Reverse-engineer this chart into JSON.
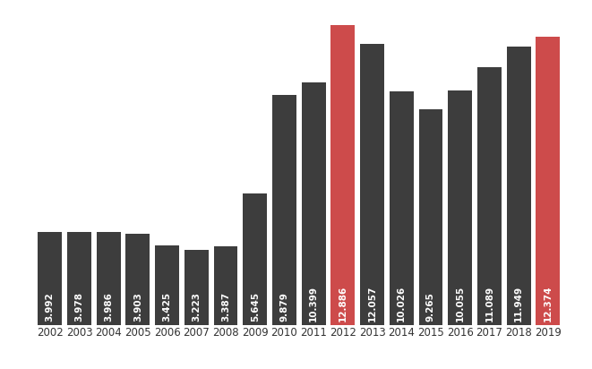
{
  "years": [
    2002,
    2003,
    2004,
    2005,
    2006,
    2007,
    2008,
    2009,
    2010,
    2011,
    2012,
    2013,
    2014,
    2015,
    2016,
    2017,
    2018,
    2019
  ],
  "values": [
    3992,
    3978,
    3986,
    3903,
    3425,
    3223,
    3387,
    5645,
    9879,
    10399,
    12886,
    12057,
    10026,
    9265,
    10055,
    11089,
    11949,
    12374
  ],
  "labels": [
    "3.992",
    "3.978",
    "3.986",
    "3.903",
    "3.425",
    "3.223",
    "3.387",
    "5.645",
    "9.879",
    "10.399",
    "12.886",
    "12.057",
    "10.026",
    "9.265",
    "10.055",
    "11.089",
    "11.949",
    "12.374"
  ],
  "colors": [
    "#3d3d3d",
    "#3d3d3d",
    "#3d3d3d",
    "#3d3d3d",
    "#3d3d3d",
    "#3d3d3d",
    "#3d3d3d",
    "#3d3d3d",
    "#3d3d3d",
    "#3d3d3d",
    "#cd4b4b",
    "#3d3d3d",
    "#3d3d3d",
    "#3d3d3d",
    "#3d3d3d",
    "#3d3d3d",
    "#3d3d3d",
    "#cd4b4b"
  ],
  "background_color": "#ffffff",
  "text_color": "#ffffff",
  "label_fontsize": 7.5,
  "tick_fontsize": 8.5,
  "ylim": [
    0,
    13800
  ],
  "bar_width": 0.82
}
